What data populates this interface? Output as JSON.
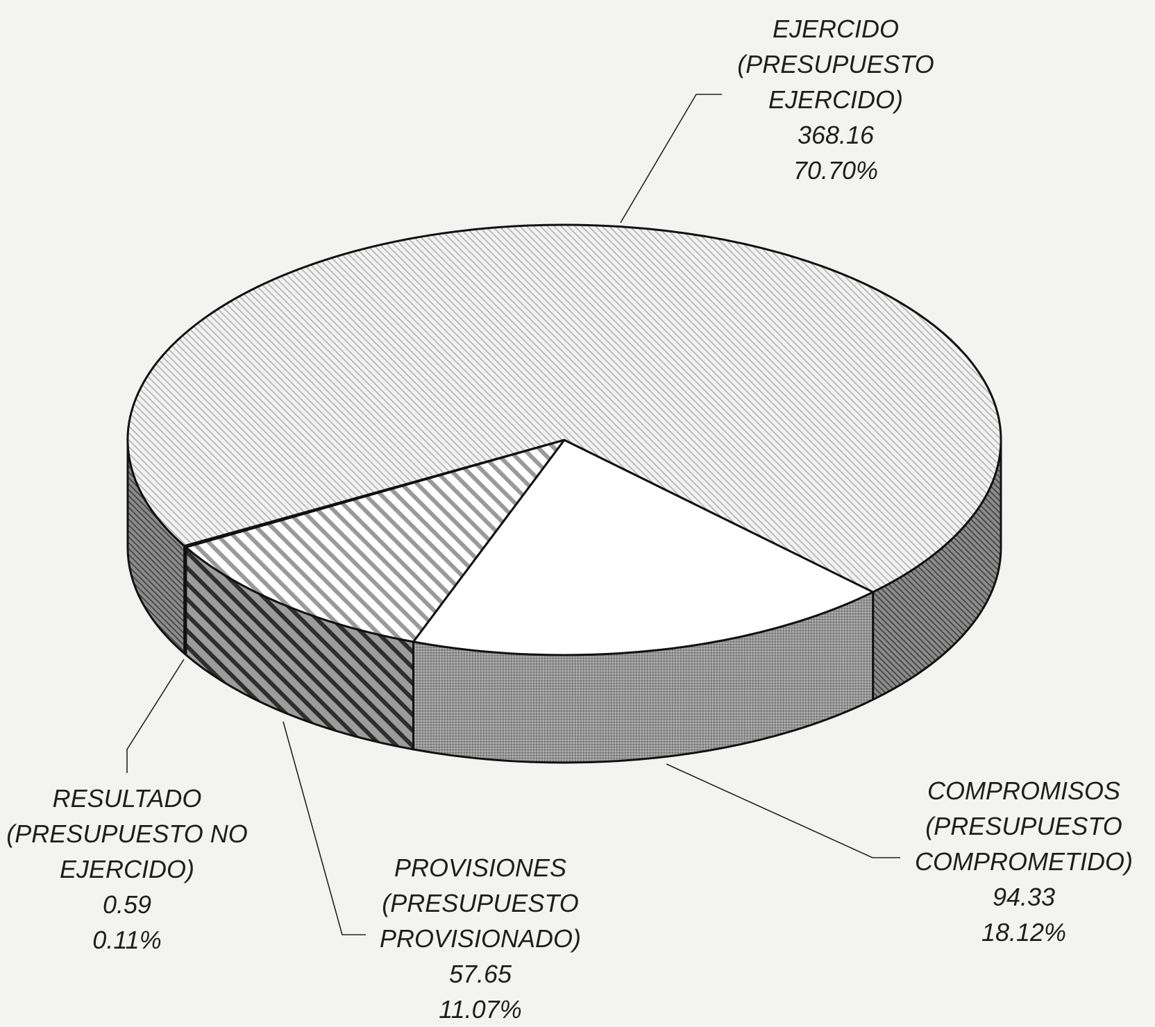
{
  "chart_data": {
    "type": "pie",
    "categories": [
      "COMPROMISOS (PRESUPUESTO COMPROMETIDO)",
      "PROVISIONES (PRESUPUESTO PROVISIONADO)",
      "RESULTADO (PRESUPUESTO NO EJERCIDO)",
      "EJERCIDO (PRESUPUESTO EJERCIDO)"
    ],
    "amounts": [
      94.33,
      57.65,
      0.59,
      368.16
    ],
    "values": [
      18.12,
      11.07,
      0.11,
      70.7
    ],
    "value_labels": [
      "18.12%",
      "11.07%",
      "0.11%",
      "70.70%"
    ]
  }
}
